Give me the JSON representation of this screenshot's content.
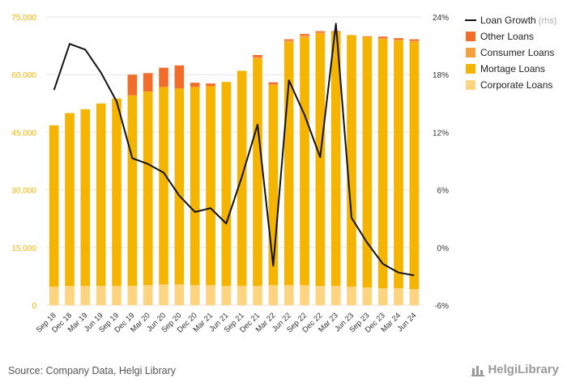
{
  "chart_data": {
    "type": "bar",
    "stacked": true,
    "categories": [
      "Sep 18",
      "Dec 18",
      "Mar 19",
      "Jun 19",
      "Sep 19",
      "Dec 19",
      "Mar 20",
      "Jun 20",
      "Sep 20",
      "Dec 20",
      "Mar 21",
      "Jun 21",
      "Sep 21",
      "Dec 21",
      "Mar 22",
      "Jun 22",
      "Sep 22",
      "Dec 22",
      "Mar 23",
      "Jun 23",
      "Sep 23",
      "Dec 23",
      "Mar 24",
      "Jun 24"
    ],
    "series": [
      {
        "name": "Corporate Loans",
        "color": "#ffd480",
        "axis": "left",
        "values": [
          4800,
          5000,
          5000,
          5000,
          5000,
          5000,
          5200,
          5400,
          5400,
          5200,
          5200,
          5000,
          5000,
          5000,
          5200,
          5200,
          5200,
          5000,
          5000,
          4800,
          4600,
          4400,
          4400,
          4200
        ]
      },
      {
        "name": "Mortage Loans",
        "color": "#f4b400",
        "axis": "left",
        "values": [
          42000,
          45000,
          46000,
          47500,
          48800,
          49600,
          50400,
          51400,
          51000,
          51600,
          51800,
          53100,
          56000,
          59200,
          52000,
          63200,
          64500,
          65600,
          66000,
          65500,
          65200,
          64800,
          64400,
          64300
        ]
      },
      {
        "name": "Consumer Loans",
        "color": "#f7a040",
        "axis": "left",
        "values": [
          0,
          0,
          0,
          0,
          0,
          0,
          0,
          0,
          0,
          0,
          0,
          0,
          0,
          300,
          300,
          500,
          500,
          400,
          400,
          0,
          0,
          300,
          300,
          300
        ]
      },
      {
        "name": "Other Loans",
        "color": "#f26c2a",
        "axis": "left",
        "values": [
          0,
          0,
          0,
          0,
          0,
          5400,
          4800,
          5000,
          6000,
          1100,
          700,
          0,
          0,
          600,
          500,
          300,
          400,
          300,
          0,
          0,
          200,
          400,
          400,
          400
        ]
      },
      {
        "name": "Loan Growth",
        "note": "(rhs)",
        "type": "line",
        "color": "#111111",
        "axis": "right",
        "values": [
          16.4,
          21.2,
          20.6,
          18.2,
          15.2,
          9.3,
          8.7,
          7.8,
          5.4,
          3.7,
          4.1,
          2.5,
          7.4,
          12.8,
          -1.9,
          17.4,
          13.8,
          9.4,
          23.3,
          3.1,
          0.5,
          -1.7,
          -2.6,
          -2.9
        ]
      }
    ],
    "ylim": [
      0,
      75000
    ],
    "yticks": [
      "0",
      "15,000",
      "30,000",
      "45,000",
      "60,000",
      "75,000"
    ],
    "y2lim": [
      -6,
      24
    ],
    "y2ticks": [
      "-6%",
      "0%",
      "6%",
      "12%",
      "18%",
      "24%"
    ],
    "legend_position": "top-right",
    "grid": true
  },
  "footer": {
    "source": "Source: Company Data, Helgi Library",
    "brand": "HelgiLibrary"
  }
}
